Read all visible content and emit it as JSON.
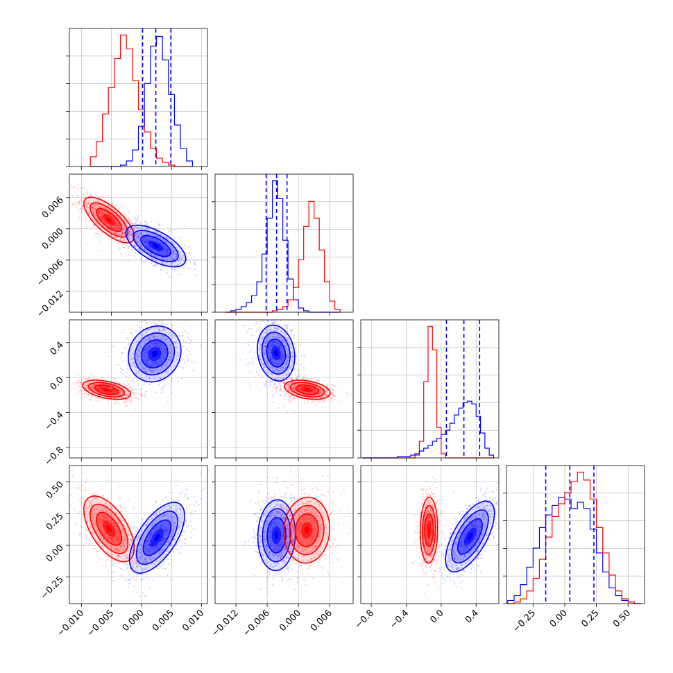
{
  "chart_data": [
    {
      "type": "histogram",
      "panel": "p00",
      "variable": 0,
      "xlim": [
        -0.012,
        0.011
      ],
      "bins": [
        -0.0085,
        -0.0075,
        -0.0065,
        -0.0055,
        -0.0045,
        -0.0035,
        -0.0025,
        -0.0015,
        -0.0005,
        0.0005,
        0.0015,
        0.0025,
        0.0035,
        0.0045,
        0.0055,
        0.0065,
        0.0075,
        0.0085
      ],
      "series": [
        {
          "color": "#ff0000",
          "counts": [
            0.07,
            0.18,
            0.38,
            0.57,
            0.78,
            0.95,
            0.85,
            0.62,
            0.41,
            0.25,
            0.13,
            0.06,
            0.03,
            0.01,
            0.0,
            0.0,
            0.0
          ]
        },
        {
          "color": "#0000ff",
          "counts": [
            0.0,
            0.0,
            0.0,
            0.0,
            0.0,
            0.01,
            0.04,
            0.12,
            0.29,
            0.6,
            0.87,
            0.94,
            0.77,
            0.52,
            0.3,
            0.13,
            0.04
          ]
        }
      ],
      "quantiles": [
        0.0002,
        0.0024,
        0.0049
      ],
      "xticks": [
        -0.01,
        -0.005,
        0.0,
        0.005,
        0.01
      ]
    },
    {
      "type": "histogram",
      "panel": "p11",
      "variable": 1,
      "xlim": [
        -0.016,
        0.0105
      ],
      "bins": [
        -0.014,
        -0.013,
        -0.012,
        -0.011,
        -0.01,
        -0.009,
        -0.008,
        -0.007,
        -0.006,
        -0.005,
        -0.004,
        -0.003,
        -0.002,
        -0.001,
        0.0,
        0.001,
        0.002,
        0.003,
        0.004,
        0.005,
        0.006,
        0.007,
        0.008
      ],
      "series": [
        {
          "color": "#0000ff",
          "counts": [
            0.0,
            0.01,
            0.02,
            0.04,
            0.07,
            0.12,
            0.22,
            0.42,
            0.68,
            0.95,
            0.82,
            0.52,
            0.24,
            0.09,
            0.03,
            0.01,
            0.0,
            0.0,
            0.0,
            0.0,
            0.0,
            0.0
          ]
        },
        {
          "color": "#ff0000",
          "counts": [
            0.0,
            0.0,
            0.0,
            0.0,
            0.0,
            0.0,
            0.0,
            0.0,
            0.0,
            0.01,
            0.02,
            0.04,
            0.09,
            0.18,
            0.38,
            0.62,
            0.8,
            0.68,
            0.45,
            0.22,
            0.08,
            0.02
          ]
        }
      ],
      "quantiles": [
        -0.0062,
        -0.0042,
        -0.0022
      ],
      "xticks": [
        -0.012,
        -0.006,
        0.0,
        0.006
      ]
    },
    {
      "type": "histogram",
      "panel": "p22",
      "variable": 2,
      "xlim": [
        -0.92,
        0.66
      ],
      "bins": [
        -0.9,
        -0.8,
        -0.7,
        -0.6,
        -0.5,
        -0.4,
        -0.35,
        -0.3,
        -0.25,
        -0.2,
        -0.15,
        -0.1,
        -0.05,
        0.0,
        0.05,
        0.1,
        0.15,
        0.2,
        0.25,
        0.3,
        0.35,
        0.4,
        0.45,
        0.5,
        0.55,
        0.6
      ],
      "series": [
        {
          "color": "#ff0000",
          "counts": [
            0.0,
            0.0,
            0.0,
            0.0,
            0.0,
            0.0,
            0.0,
            0.02,
            0.12,
            0.55,
            0.95,
            0.78,
            0.22,
            0.03,
            0.0,
            0.0,
            0.0,
            0.0,
            0.0,
            0.0,
            0.0,
            0.0,
            0.0,
            0.0,
            0.0
          ]
        },
        {
          "color": "#0000ff",
          "counts": [
            0.0,
            0.0,
            0.0,
            0.0,
            0.01,
            0.01,
            0.02,
            0.03,
            0.05,
            0.07,
            0.09,
            0.12,
            0.14,
            0.17,
            0.2,
            0.25,
            0.31,
            0.36,
            0.4,
            0.41,
            0.39,
            0.3,
            0.18,
            0.07,
            0.02
          ]
        }
      ],
      "quantiles": [
        0.06,
        0.26,
        0.44
      ],
      "xticks": [
        -0.8,
        -0.4,
        0.0,
        0.4
      ],
      "xtick_labels": [
        "−0.8",
        "−0.4",
        "0.0",
        "0.4"
      ]
    },
    {
      "type": "histogram",
      "panel": "p33",
      "variable": 3,
      "xlim": [
        -0.46,
        0.63
      ],
      "bins": [
        -0.45,
        -0.4,
        -0.35,
        -0.3,
        -0.25,
        -0.2,
        -0.15,
        -0.1,
        -0.05,
        0.0,
        0.05,
        0.1,
        0.15,
        0.2,
        0.25,
        0.3,
        0.35,
        0.4,
        0.45,
        0.5,
        0.55,
        0.6
      ],
      "series": [
        {
          "color": "#0000ff",
          "counts": [
            0.02,
            0.05,
            0.12,
            0.23,
            0.35,
            0.48,
            0.56,
            0.62,
            0.67,
            0.66,
            0.6,
            0.64,
            0.6,
            0.47,
            0.32,
            0.2,
            0.1,
            0.05,
            0.02,
            0.01,
            0.0
          ]
        },
        {
          "color": "#ff0000",
          "counts": [
            0.0,
            0.01,
            0.03,
            0.08,
            0.16,
            0.28,
            0.42,
            0.55,
            0.63,
            0.7,
            0.77,
            0.83,
            0.78,
            0.66,
            0.48,
            0.32,
            0.18,
            0.08,
            0.03,
            0.01,
            0.0
          ]
        }
      ],
      "quantiles": [
        -0.15,
        0.04,
        0.23
      ],
      "xticks": [
        -0.25,
        0.0,
        0.25,
        0.5
      ]
    },
    {
      "type": "scatter-contour",
      "panel": "p10",
      "x_variable": 0,
      "y_variable": 1,
      "xlim": [
        -0.012,
        0.011
      ],
      "ylim": [
        -0.016,
        0.0105
      ],
      "series": [
        {
          "color": "#ff0000",
          "center": [
            -0.0054,
            0.0017
          ],
          "sigma": [
            0.0021,
            0.0022
          ],
          "rho": -0.72
        },
        {
          "color": "#0000ff",
          "center": [
            0.0024,
            -0.0033
          ],
          "sigma": [
            0.0025,
            0.002
          ],
          "rho": -0.62
        }
      ],
      "yticks": [
        -0.012,
        -0.006,
        0.0,
        0.006
      ]
    },
    {
      "type": "scatter-contour",
      "panel": "p20",
      "x_variable": 0,
      "y_variable": 2,
      "xlim": [
        -0.012,
        0.011
      ],
      "ylim": [
        -0.92,
        0.66
      ],
      "series": [
        {
          "color": "#ff0000",
          "center": [
            -0.0058,
            -0.14
          ],
          "sigma": [
            0.002,
            0.055
          ],
          "rho": -0.45
        },
        {
          "color": "#0000ff",
          "center": [
            0.0022,
            0.27
          ],
          "sigma": [
            0.0022,
            0.16
          ],
          "rho": 0.12
        }
      ],
      "yticks": [
        -0.8,
        -0.4,
        0.0,
        0.4
      ],
      "ytick_labels": [
        "−0.8",
        "−0.4",
        "0.0",
        "0.4"
      ]
    },
    {
      "type": "scatter-contour",
      "panel": "p21",
      "x_variable": 1,
      "y_variable": 2,
      "xlim": [
        -0.016,
        0.0105
      ],
      "ylim": [
        -0.92,
        0.66
      ],
      "series": [
        {
          "color": "#0000ff",
          "center": [
            -0.0043,
            0.28
          ],
          "sigma": [
            0.0018,
            0.16
          ],
          "rho": -0.15
        },
        {
          "color": "#ff0000",
          "center": [
            0.0017,
            -0.14
          ],
          "sigma": [
            0.0022,
            0.055
          ],
          "rho": -0.35
        }
      ]
    },
    {
      "type": "scatter-contour",
      "panel": "p30",
      "x_variable": 0,
      "y_variable": 3,
      "xlim": [
        -0.012,
        0.011
      ],
      "ylim": [
        -0.46,
        0.63
      ],
      "series": [
        {
          "color": "#ff0000",
          "center": [
            -0.0054,
            0.13
          ],
          "sigma": [
            0.0021,
            0.13
          ],
          "rho": -0.58
        },
        {
          "color": "#0000ff",
          "center": [
            0.0026,
            0.06
          ],
          "sigma": [
            0.0023,
            0.14
          ],
          "rho": 0.62
        }
      ],
      "xticks": [
        -0.01,
        -0.005,
        0.0,
        0.005,
        0.01
      ],
      "xtick_labels": [
        "−0.010",
        "−0.005",
        "0.000",
        "0.005",
        "0.010"
      ],
      "yticks": [
        -0.25,
        0.0,
        0.25,
        0.5
      ],
      "ytick_labels": [
        "−0.25",
        "0.00",
        "0.25",
        "0.50"
      ]
    },
    {
      "type": "scatter-contour",
      "panel": "p31",
      "x_variable": 1,
      "y_variable": 3,
      "xlim": [
        -0.016,
        0.0105
      ],
      "ylim": [
        -0.46,
        0.63
      ],
      "series": [
        {
          "color": "#0000ff",
          "center": [
            -0.0042,
            0.08
          ],
          "sigma": [
            0.0018,
            0.14
          ],
          "rho": 0.05
        },
        {
          "color": "#ff0000",
          "center": [
            0.0016,
            0.12
          ],
          "sigma": [
            0.0022,
            0.13
          ],
          "rho": 0.05
        }
      ],
      "xticks": [
        -0.012,
        -0.006,
        0.0,
        0.006
      ],
      "xtick_labels": [
        "−0.012",
        "−0.006",
        "0.000",
        "0.006"
      ]
    },
    {
      "type": "scatter-contour",
      "panel": "p32",
      "x_variable": 2,
      "y_variable": 3,
      "xlim": [
        -0.92,
        0.66
      ],
      "ylim": [
        -0.46,
        0.63
      ],
      "series": [
        {
          "color": "#ff0000",
          "center": [
            -0.14,
            0.12
          ],
          "sigma": [
            0.05,
            0.13
          ],
          "rho": 0.05
        },
        {
          "color": "#0000ff",
          "center": [
            0.33,
            0.07
          ],
          "sigma": [
            0.14,
            0.14
          ],
          "rho": 0.65
        }
      ],
      "xticks": [
        -0.8,
        -0.4,
        0.0,
        0.4
      ],
      "xtick_labels": [
        "−0.8",
        "−0.4",
        "0.0",
        "0.4"
      ]
    }
  ],
  "colors": {
    "series_a": "#ff0000",
    "series_b": "#0000ff",
    "grid": "#b0b0b0",
    "frame": "#000000"
  },
  "labels": {
    "p10_y": [
      "−0.012",
      "−0.006",
      "0.000",
      "0.006"
    ],
    "p33_x": [
      "−0.25",
      "0.00",
      "0.25",
      "0.50"
    ]
  }
}
